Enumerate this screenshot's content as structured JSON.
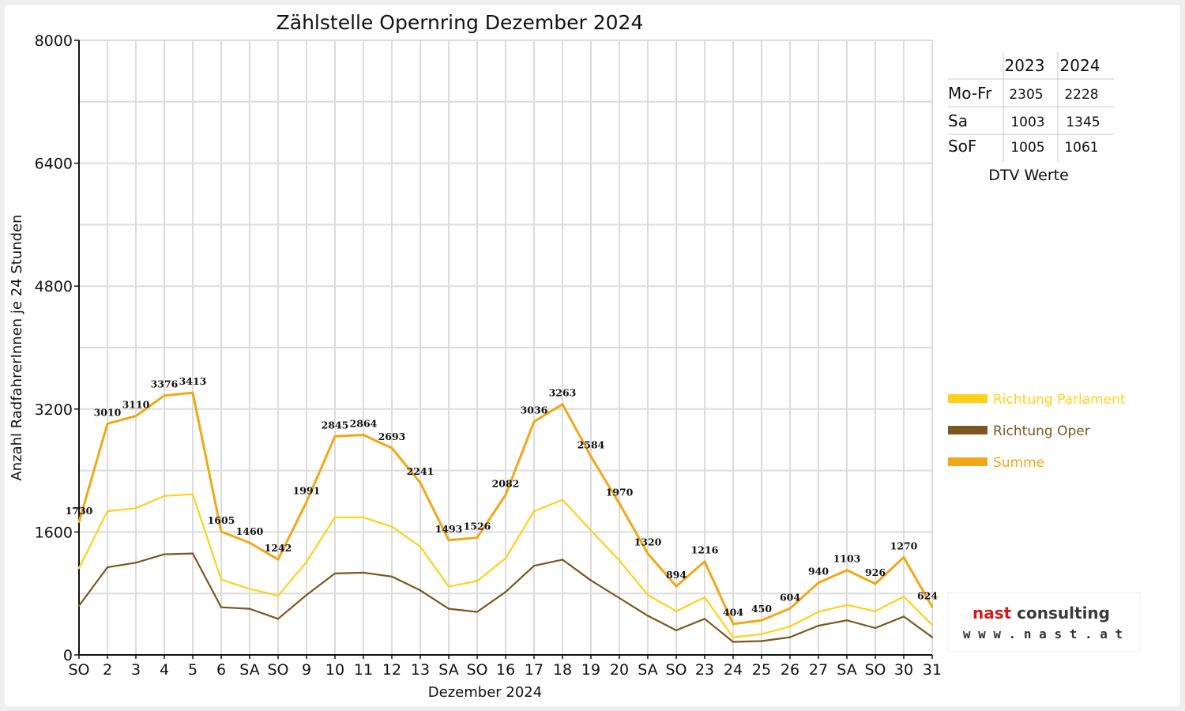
{
  "chart_data": {
    "type": "line",
    "title": "Zählstelle Opernring Dezember 2024",
    "xlabel": "Dezember 2024",
    "ylabel": "Anzahl RadfahrerInnen je 24 Stunden",
    "ylim": [
      0,
      8000
    ],
    "yticks": [
      "0",
      "1600",
      "3200",
      "4800",
      "6400",
      "8000"
    ],
    "grid": true,
    "legend_position": "right",
    "categories": [
      "SO",
      "2",
      "3",
      "4",
      "5",
      "6",
      "SA",
      "SO",
      "9",
      "10",
      "11",
      "12",
      "13",
      "SA",
      "SO",
      "16",
      "17",
      "18",
      "19",
      "20",
      "SA",
      "SO",
      "23",
      "24",
      "25",
      "26",
      "27",
      "SA",
      "SO",
      "30",
      "31"
    ],
    "red_categories": [
      0,
      7,
      14,
      21,
      24,
      25,
      28
    ],
    "series": [
      {
        "name": "Richtung Parlament",
        "color": "#ffd11a",
        "values": [
          1130,
          1870,
          1910,
          2070,
          2090,
          980,
          860,
          770,
          1210,
          1790,
          1790,
          1670,
          1410,
          890,
          960,
          1260,
          1870,
          2020,
          1620,
          1230,
          780,
          570,
          750,
          230,
          270,
          370,
          560,
          650,
          570,
          760,
          390
        ]
      },
      {
        "name": "Richtung Oper",
        "color": "#7a5820",
        "values": [
          640,
          1140,
          1200,
          1310,
          1320,
          620,
          600,
          470,
          780,
          1060,
          1070,
          1020,
          840,
          600,
          560,
          820,
          1160,
          1240,
          970,
          740,
          510,
          320,
          470,
          170,
          180,
          230,
          380,
          450,
          350,
          500,
          230
        ]
      },
      {
        "name": "Summe",
        "color": "#f0a818",
        "values": [
          1730,
          3010,
          3110,
          3376,
          3413,
          1605,
          1460,
          1242,
          1991,
          2845,
          2864,
          2693,
          2241,
          1493,
          1526,
          2082,
          3036,
          3263,
          2584,
          1970,
          1320,
          894,
          1216,
          404,
          450,
          604,
          940,
          1103,
          926,
          1270,
          624
        ]
      }
    ],
    "data_labels": [
      "1730",
      "3010",
      "3110",
      "3376",
      "3413",
      "1605",
      "1460",
      "1242",
      "1991",
      "2845",
      "2864",
      "2693",
      "2241",
      "1493",
      "1526",
      "2082",
      "3036",
      "3263",
      "2584",
      "1970",
      "1320",
      "894",
      "1216",
      "404",
      "450",
      "604",
      "940",
      "1103",
      "926",
      "1270",
      "624"
    ]
  },
  "dtv_table": {
    "headers": [
      "2023",
      "2024"
    ],
    "rows": [
      {
        "label": "Mo-Fr",
        "v2023": "2305",
        "v2024": "2228"
      },
      {
        "label": "Sa",
        "v2023": "1003",
        "v2024": "1345"
      },
      {
        "label": "SoF",
        "v2023": "1005",
        "v2024": "1061"
      }
    ],
    "caption": "DTV Werte"
  },
  "logo": {
    "line1": "nast consulting",
    "line2": "w w w . n a s t . a t"
  },
  "colors": {
    "red_day": "#e01010",
    "grid": "#dcdcdc"
  }
}
